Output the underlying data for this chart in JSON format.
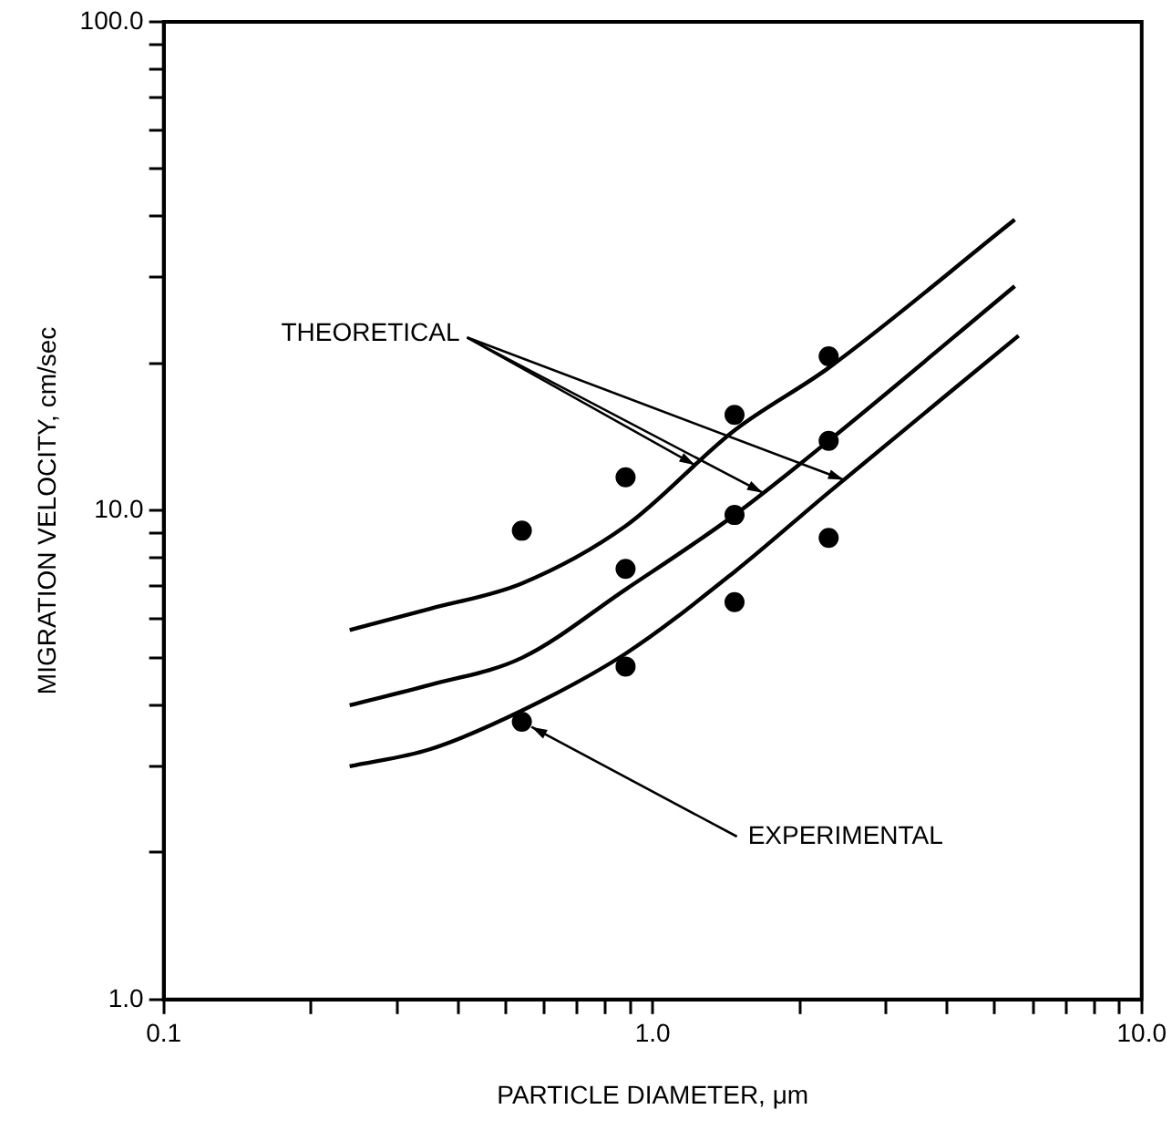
{
  "chart_data": {
    "type": "scatter",
    "xlabel": "PARTICLE DIAMETER, μm",
    "ylabel": "MIGRATION VELOCITY, cm/sec",
    "log": "xy",
    "grid": false,
    "legend": false,
    "marker": "circle",
    "xlim": [
      0.1,
      10
    ],
    "ylim": [
      1,
      100
    ],
    "xticks": [
      {
        "value": 0.1,
        "label": "0.1"
      },
      {
        "value": 0.2,
        "label": null
      },
      {
        "value": 0.3,
        "label": null
      },
      {
        "value": 0.4,
        "label": null
      },
      {
        "value": 0.5,
        "label": null
      },
      {
        "value": 0.6,
        "label": null
      },
      {
        "value": 0.7,
        "label": null
      },
      {
        "value": 0.8,
        "label": null
      },
      {
        "value": 0.9,
        "label": null
      },
      {
        "value": 1,
        "label": "1.0"
      },
      {
        "value": 2,
        "label": null
      },
      {
        "value": 3,
        "label": null
      },
      {
        "value": 4,
        "label": null
      },
      {
        "value": 5,
        "label": null
      },
      {
        "value": 6,
        "label": null
      },
      {
        "value": 7,
        "label": null
      },
      {
        "value": 8,
        "label": null
      },
      {
        "value": 9,
        "label": null
      },
      {
        "value": 10,
        "label": "10.0"
      }
    ],
    "yticks": [
      {
        "value": 1,
        "label": "1.0"
      },
      {
        "value": 2,
        "label": null
      },
      {
        "value": 3,
        "label": null
      },
      {
        "value": 4,
        "label": null
      },
      {
        "value": 5,
        "label": null
      },
      {
        "value": 6,
        "label": null
      },
      {
        "value": 7,
        "label": null
      },
      {
        "value": 8,
        "label": null
      },
      {
        "value": 9,
        "label": null
      },
      {
        "value": 10,
        "label": "10.0"
      },
      {
        "value": 20,
        "label": null
      },
      {
        "value": 30,
        "label": null
      },
      {
        "value": 40,
        "label": null
      },
      {
        "value": 50,
        "label": null
      },
      {
        "value": 60,
        "label": null
      },
      {
        "value": 70,
        "label": null
      },
      {
        "value": 80,
        "label": null
      },
      {
        "value": 90,
        "label": null
      },
      {
        "value": 100,
        "label": "100.0"
      }
    ],
    "series": [
      {
        "color": "#000000",
        "x": [
          0.54,
          0.54,
          0.88,
          0.88,
          0.88,
          1.47,
          1.47,
          1.47,
          2.29,
          2.29,
          2.29
        ],
        "values": [
          9.1,
          3.7,
          11.7,
          7.6,
          4.8,
          15.7,
          9.8,
          6.5,
          20.7,
          13.9,
          8.8
        ]
      },
      {
        "type": "line",
        "color": "#000000",
        "marker": "none",
        "x": [
          0.24,
          0.35,
          0.54,
          0.88,
          1.47,
          2.29,
          5.5
        ],
        "values": [
          5.7,
          6.3,
          7.1,
          9.3,
          14.6,
          19.6,
          39.4
        ]
      },
      {
        "type": "line",
        "color": "#000000",
        "marker": "none",
        "x": [
          0.24,
          0.35,
          0.54,
          0.88,
          1.47,
          2.29,
          5.5
        ],
        "values": [
          4.0,
          4.4,
          5.0,
          6.9,
          9.8,
          13.9,
          28.8
        ]
      },
      {
        "type": "line",
        "color": "#000000",
        "marker": "none",
        "x": [
          0.24,
          0.35,
          0.54,
          0.88,
          1.47,
          2.29,
          5.6
        ],
        "values": [
          3.0,
          3.25,
          3.9,
          5.1,
          7.5,
          10.9,
          22.8
        ]
      }
    ],
    "annotations": [
      {
        "text": "THEORETICAL",
        "x": 1.22,
        "y": 12.4
      },
      {
        "text": "EXPERIMENTAL",
        "x": 0.54,
        "y": 3.7
      }
    ]
  }
}
